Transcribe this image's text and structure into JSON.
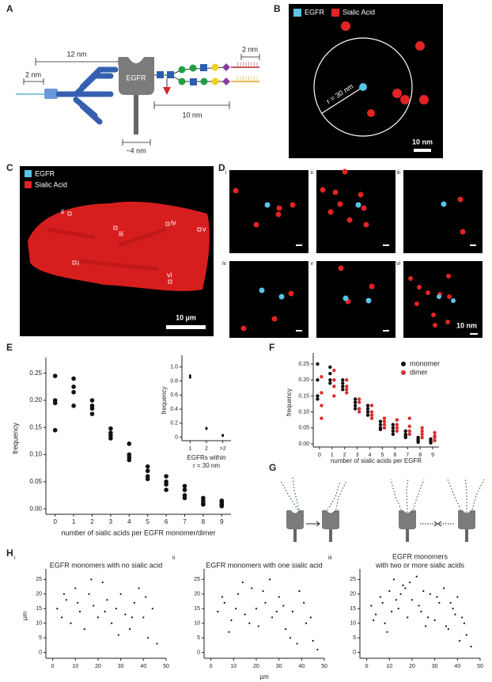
{
  "panel_labels": [
    "A",
    "B",
    "C",
    "D",
    "E",
    "F",
    "G",
    "H"
  ],
  "panel_a": {
    "dimensions": [
      "12 nm",
      "2 nm",
      "2 nm",
      "10 nm",
      "~4 nm"
    ],
    "protein": "EGFR"
  },
  "panel_b": {
    "legend": [
      "EGFR",
      "Sialic Acid"
    ],
    "radius": "r = 30 nm",
    "scale_bar": "10 nm"
  },
  "panel_c": {
    "legend": [
      "EGFR",
      "Sialic Acid"
    ],
    "regions": [
      "ii",
      "iii",
      "iv",
      "v",
      "i",
      "vi"
    ],
    "scale_bar": "10 µm"
  },
  "panel_d": {
    "subpanels": [
      "i",
      "ii",
      "iii",
      "iv",
      "v",
      "vi"
    ],
    "scale_bar": "10 nm"
  },
  "chart_data": [
    {
      "type": "scatter",
      "xlabel": "number of sialic acids per EGFR monomer/dimer",
      "ylabel": "frequency",
      "categories": [
        "0",
        "1",
        "2",
        "3",
        "4",
        "5",
        "6",
        "7",
        "8",
        "9"
      ],
      "ylim": [
        -0.01,
        0.27
      ],
      "yticks": [
        {
          "value": 0,
          "label": "0.00"
        },
        {
          "value": 0.05,
          "label": "0.05"
        },
        {
          "value": 0.1,
          "label": "0.10"
        },
        {
          "value": 0.15,
          "label": "0.15"
        },
        {
          "value": 0.2,
          "label": "0.20"
        },
        {
          "value": 0.25,
          "label": "0.25"
        }
      ],
      "series": [
        {
          "color": "#111111",
          "values": [
            [
              0.245,
              0.2,
              0.195,
              0.145
            ],
            [
              0.24,
              0.225,
              0.215,
              0.19
            ],
            [
              0.2,
              0.19,
              0.185,
              0.175
            ],
            [
              0.148,
              0.14,
              0.135,
              0.13
            ],
            [
              0.12,
              0.1,
              0.095,
              0.09
            ],
            [
              0.078,
              0.07,
              0.06,
              0.055
            ],
            [
              0.06,
              0.05,
              0.045,
              0.035
            ],
            [
              0.042,
              0.035,
              0.025,
              0.02
            ],
            [
              0.02,
              0.015,
              0.01,
              0.008
            ],
            [
              0.015,
              0.012,
              0.008,
              0.005
            ]
          ]
        }
      ]
    },
    {
      "type": "scatter",
      "xlabel_lines": [
        "EGFRs within",
        "r = 30 nm"
      ],
      "ylabel": "frequency",
      "categories": [
        "1",
        "2",
        ">2"
      ],
      "ylim": [
        -0.05,
        1.1
      ],
      "yticks": [
        0,
        0.2,
        0.4,
        0.6,
        0.8,
        {
          "value": 1,
          "label": "1.0"
        }
      ],
      "series": [
        {
          "color": "#111111",
          "values": [
            [
              0.88,
              0.86,
              0.85,
              0.85
            ],
            [
              0.13,
              0.12,
              0.12,
              0.13
            ],
            [
              0.03,
              0.02,
              0.02,
              0.03
            ]
          ]
        }
      ]
    },
    {
      "type": "scatter",
      "xlabel": "number of sialic acids per EGFR",
      "ylabel": "frequency",
      "categories": [
        "0",
        "1",
        "2",
        "3",
        "4",
        "5",
        "6",
        "7",
        "8",
        "9"
      ],
      "ylim": [
        -0.01,
        0.27
      ],
      "yticks": [
        {
          "value": 0,
          "label": "0.00"
        },
        {
          "value": 0.05,
          "label": "0.05"
        },
        {
          "value": 0.1,
          "label": "0.10"
        },
        {
          "value": 0.15,
          "label": "0.15"
        },
        {
          "value": 0.2,
          "label": "0.20"
        },
        {
          "value": 0.25,
          "label": "0.25"
        }
      ],
      "legend": "upper right",
      "series": [
        {
          "name": "monomer",
          "color": "#111111",
          "values": [
            [
              0.25,
              0.2,
              0.15,
              0.14
            ],
            [
              0.24,
              0.22,
              0.2,
              0.19
            ],
            [
              0.2,
              0.19,
              0.18,
              0.17
            ],
            [
              0.14,
              0.13,
              0.12,
              0.11
            ],
            [
              0.12,
              0.11,
              0.1,
              0.09
            ],
            [
              0.07,
              0.06,
              0.05,
              0.045
            ],
            [
              0.06,
              0.05,
              0.04,
              0.03
            ],
            [
              0.04,
              0.03,
              0.025,
              0.02
            ],
            [
              0.02,
              0.015,
              0.01,
              0.005
            ],
            [
              0.015,
              0.01,
              0.005,
              0.003
            ]
          ]
        },
        {
          "name": "dimer",
          "color": "#d93030",
          "values": [
            [
              0.21,
              0.16,
              0.12,
              0.08
            ],
            [
              0.23,
              0.2,
              0.18,
              0.15
            ],
            [
              0.2,
              0.18,
              0.17,
              0.16
            ],
            [
              0.14,
              0.13,
              0.11,
              0.1
            ],
            [
              0.12,
              0.1,
              0.09,
              0.08
            ],
            [
              0.08,
              0.07,
              0.06,
              0.05
            ],
            [
              0.075,
              0.06,
              0.05,
              0.04
            ],
            [
              0.08,
              0.055,
              0.04,
              0.03
            ],
            [
              0.05,
              0.04,
              0.03,
              0.02
            ],
            [
              0.035,
              0.025,
              0.02,
              0.01
            ]
          ]
        }
      ]
    },
    {
      "type": "scatter",
      "subpanel": "i",
      "title_lines": [
        "EGFR monomers with no sialic acid"
      ],
      "ylabel": "µm",
      "xlim": [
        -3,
        50
      ],
      "ylim": [
        -2,
        27
      ],
      "xticks": [
        0,
        10,
        20,
        30,
        40,
        50
      ],
      "yticks": [
        0,
        5,
        10,
        15,
        20,
        25
      ],
      "series": [
        {
          "color": "#111111",
          "x": [
            2,
            4,
            6,
            8,
            10,
            12,
            14,
            16,
            18,
            20,
            22,
            24,
            26,
            28,
            30,
            32,
            34,
            36,
            38,
            40,
            42,
            44,
            46,
            5,
            11,
            17,
            23,
            29,
            35,
            41
          ],
          "y": [
            15,
            12,
            18,
            10,
            22,
            14,
            8,
            20,
            16,
            12,
            24,
            18,
            10,
            15,
            20,
            13,
            8,
            17,
            22,
            12,
            5,
            15,
            3,
            20,
            17,
            25,
            14,
            6,
            12,
            19
          ]
        }
      ]
    },
    {
      "type": "scatter",
      "subpanel": "ii",
      "title_lines": [
        "EGFR monomers with one sialic acid"
      ],
      "xlabel": "µm",
      "xlim": [
        -3,
        50
      ],
      "ylim": [
        -2,
        27
      ],
      "xticks": [
        0,
        10,
        20,
        30,
        40,
        50
      ],
      "yticks": [
        0,
        5,
        10,
        15,
        20,
        25
      ],
      "series": [
        {
          "color": "#111111",
          "x": [
            3,
            6,
            9,
            12,
            15,
            18,
            21,
            24,
            27,
            30,
            33,
            36,
            39,
            42,
            45,
            8,
            14,
            20,
            26,
            32,
            38,
            44,
            5,
            11,
            17,
            23,
            29,
            35,
            41,
            47
          ],
          "y": [
            14,
            17,
            11,
            20,
            13,
            22,
            9,
            17,
            12,
            19,
            8,
            14,
            21,
            10,
            4,
            7,
            24,
            15,
            25,
            16,
            3,
            12,
            19,
            15,
            10,
            21,
            14,
            5,
            17,
            1
          ]
        }
      ]
    },
    {
      "type": "scatter",
      "subpanel": "iii",
      "title_lines": [
        "EGFR monomers",
        "with two or more sialic acids"
      ],
      "xlim": [
        -3,
        50
      ],
      "ylim": [
        -2,
        27
      ],
      "xticks": [
        0,
        10,
        20,
        30,
        40,
        50
      ],
      "yticks": [
        0,
        5,
        10,
        15,
        20,
        25
      ],
      "series": [
        {
          "color": "#111111",
          "x": [
            2,
            4,
            6,
            8,
            10,
            12,
            14,
            16,
            18,
            20,
            22,
            24,
            26,
            28,
            30,
            32,
            34,
            36,
            38,
            40,
            42,
            44,
            46,
            3,
            7,
            11,
            15,
            19,
            23,
            27,
            31,
            35,
            39,
            43,
            13,
            17,
            37,
            41,
            9,
            25
          ],
          "y": [
            16,
            13,
            19,
            10,
            21,
            25,
            15,
            23,
            12,
            18,
            26,
            14,
            9,
            20,
            11,
            17,
            22,
            8,
            15,
            19,
            12,
            6,
            2,
            11,
            17,
            14,
            20,
            24,
            16,
            12,
            19,
            9,
            13,
            10,
            18,
            22,
            17,
            4,
            7,
            21
          ]
        }
      ]
    }
  ]
}
